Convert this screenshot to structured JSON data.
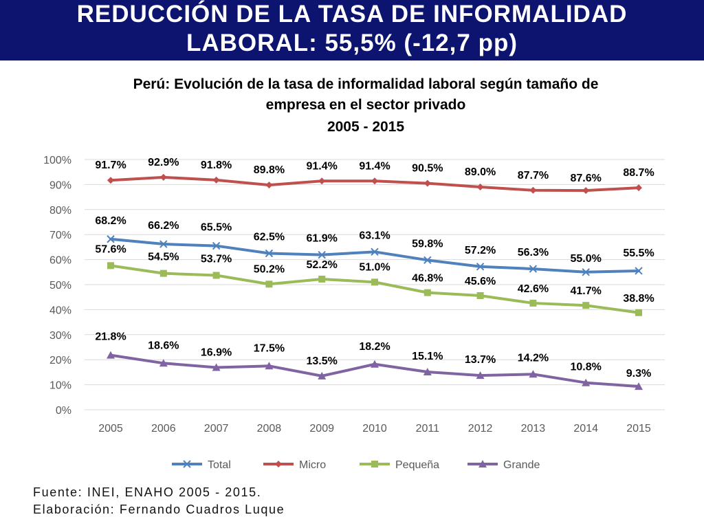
{
  "header": {
    "title_line1": "REDUCCIÓN DE LA TASA DE INFORMALIDAD",
    "title_line2": "LABORAL: 55,5% (-12,7 pp)"
  },
  "chart_data": {
    "type": "line",
    "title": [
      "Perú: Evolución de la tasa de informalidad laboral según tamaño de",
      "empresa en el sector privado",
      "2005 - 2015"
    ],
    "x": [
      "2005",
      "2006",
      "2007",
      "2008",
      "2009",
      "2010",
      "2011",
      "2012",
      "2013",
      "2014",
      "2015"
    ],
    "ylim": [
      0,
      100
    ],
    "yticks": [
      "0%",
      "10%",
      "20%",
      "30%",
      "40%",
      "50%",
      "60%",
      "70%",
      "80%",
      "90%",
      "100%"
    ],
    "grid": true,
    "legend": "bottom",
    "series": [
      {
        "name": "Total",
        "color": "#4f81bd",
        "marker": "x",
        "values": [
          68.2,
          66.2,
          65.5,
          62.5,
          61.9,
          63.1,
          59.8,
          57.2,
          56.3,
          55.0,
          55.5
        ],
        "labels": [
          "68.2%",
          "66.2%",
          "65.5%",
          "62.5%",
          "61.9%",
          "63.1%",
          "59.8%",
          "57.2%",
          "56.3%",
          "55.0%",
          "55.5%"
        ]
      },
      {
        "name": "Micro",
        "color": "#c0504d",
        "marker": "diamond",
        "values": [
          91.7,
          92.9,
          91.8,
          89.8,
          91.4,
          91.4,
          90.5,
          89.0,
          87.7,
          87.6,
          88.7
        ],
        "labels": [
          "91.7%",
          "92.9%",
          "91.8%",
          "89.8%",
          "91.4%",
          "91.4%",
          "90.5%",
          "89.0%",
          "87.7%",
          "87.6%",
          "88.7%"
        ]
      },
      {
        "name": "Pequeña",
        "color": "#9bbb59",
        "marker": "square",
        "values": [
          57.6,
          54.5,
          53.7,
          50.2,
          52.2,
          51.0,
          46.8,
          45.6,
          42.6,
          41.7,
          38.8
        ],
        "labels": [
          "57.6%",
          "54.5%",
          "53.7%",
          "50.2%",
          "52.2%",
          "51.0%",
          "46.8%",
          "45.6%",
          "42.6%",
          "41.7%",
          "38.8%"
        ]
      },
      {
        "name": "Grande",
        "color": "#8064a2",
        "marker": "triangle",
        "values": [
          21.8,
          18.6,
          16.9,
          17.5,
          13.5,
          18.2,
          15.1,
          13.7,
          14.2,
          10.8,
          9.3
        ],
        "labels": [
          "21.8%",
          "18.6%",
          "16.9%",
          "17.5%",
          "13.5%",
          "18.2%",
          "15.1%",
          "13.7%",
          "14.2%",
          "10.8%",
          "9.3%"
        ]
      }
    ]
  },
  "footer": {
    "source": "Fuente: INEI, ENAHO 2005 - 2015.",
    "author": "Elaboración: Fernando Cuadros Luque"
  }
}
